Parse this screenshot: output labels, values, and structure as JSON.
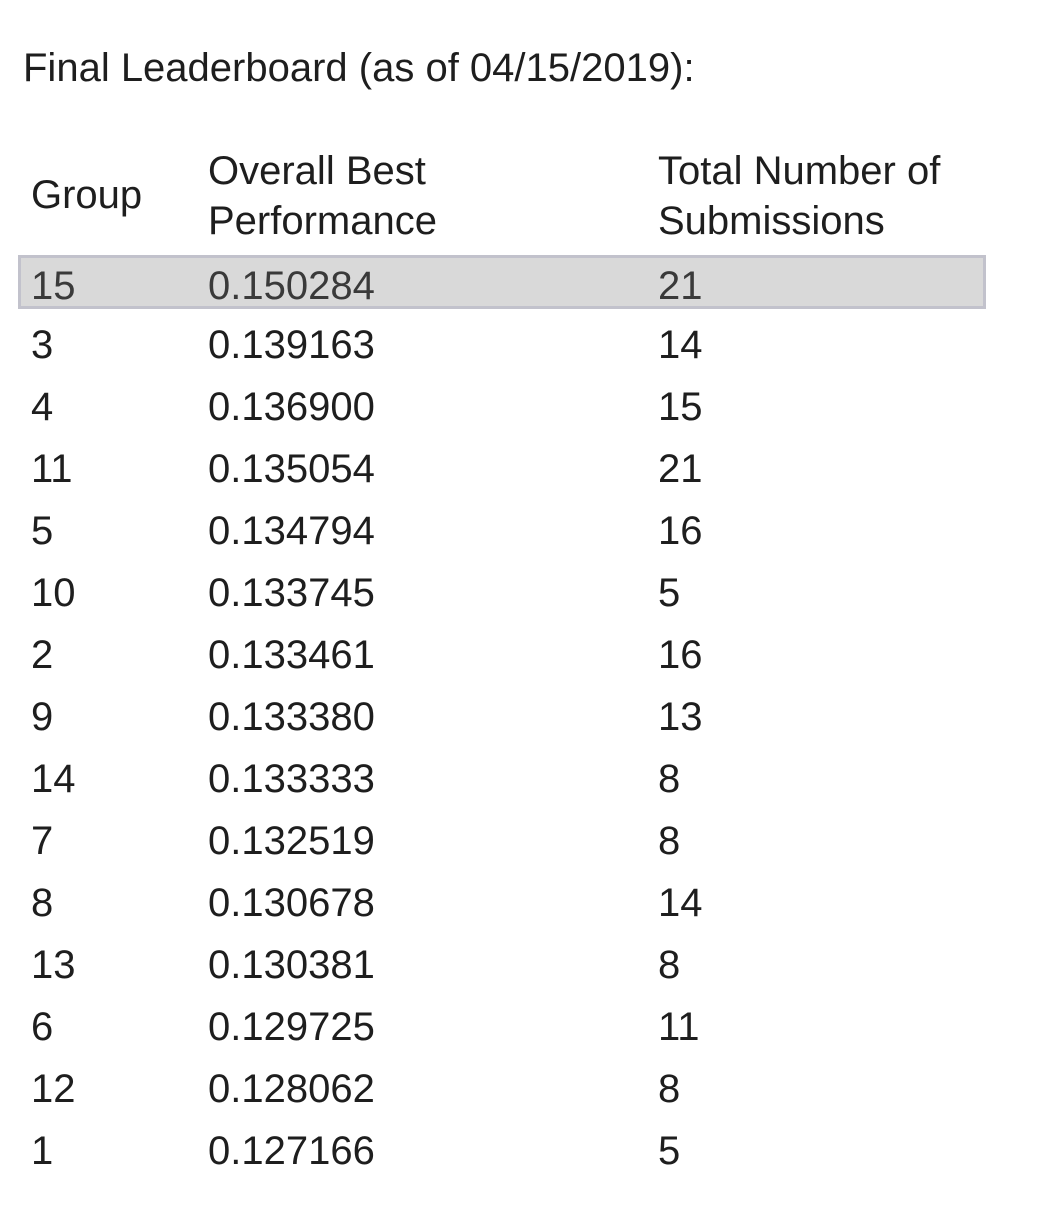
{
  "title": "Final Leaderboard (as of 04/15/2019):",
  "table": {
    "headers": {
      "group": "Group",
      "performance_line1": "Overall Best",
      "performance_line2": "Performance",
      "submissions_line1": "Total Number of",
      "submissions_line2": "Submissions"
    },
    "rows": [
      {
        "group": "15",
        "performance": "0.150284",
        "submissions": "21",
        "highlighted": true
      },
      {
        "group": "3",
        "performance": "0.139163",
        "submissions": "14"
      },
      {
        "group": "4",
        "performance": "0.136900",
        "submissions": "15"
      },
      {
        "group": "11",
        "performance": "0.135054",
        "submissions": "21"
      },
      {
        "group": "5",
        "performance": "0.134794",
        "submissions": "16"
      },
      {
        "group": "10",
        "performance": "0.133745",
        "submissions": "5"
      },
      {
        "group": "2",
        "performance": "0.133461",
        "submissions": "16"
      },
      {
        "group": "9",
        "performance": "0.133380",
        "submissions": "13"
      },
      {
        "group": "14",
        "performance": "0.133333",
        "submissions": "8"
      },
      {
        "group": "7",
        "performance": "0.132519",
        "submissions": "8"
      },
      {
        "group": "8",
        "performance": "0.130678",
        "submissions": "14"
      },
      {
        "group": "13",
        "performance": "0.130381",
        "submissions": "8"
      },
      {
        "group": "6",
        "performance": "0.129725",
        "submissions": "11"
      },
      {
        "group": "12",
        "performance": "0.128062",
        "submissions": "8"
      },
      {
        "group": "1",
        "performance": "0.127166",
        "submissions": "5"
      }
    ]
  },
  "colors": {
    "text": "#1e1e1e",
    "highlight_background": "#d9d9d9",
    "highlight_border": "#c2c2cc"
  }
}
